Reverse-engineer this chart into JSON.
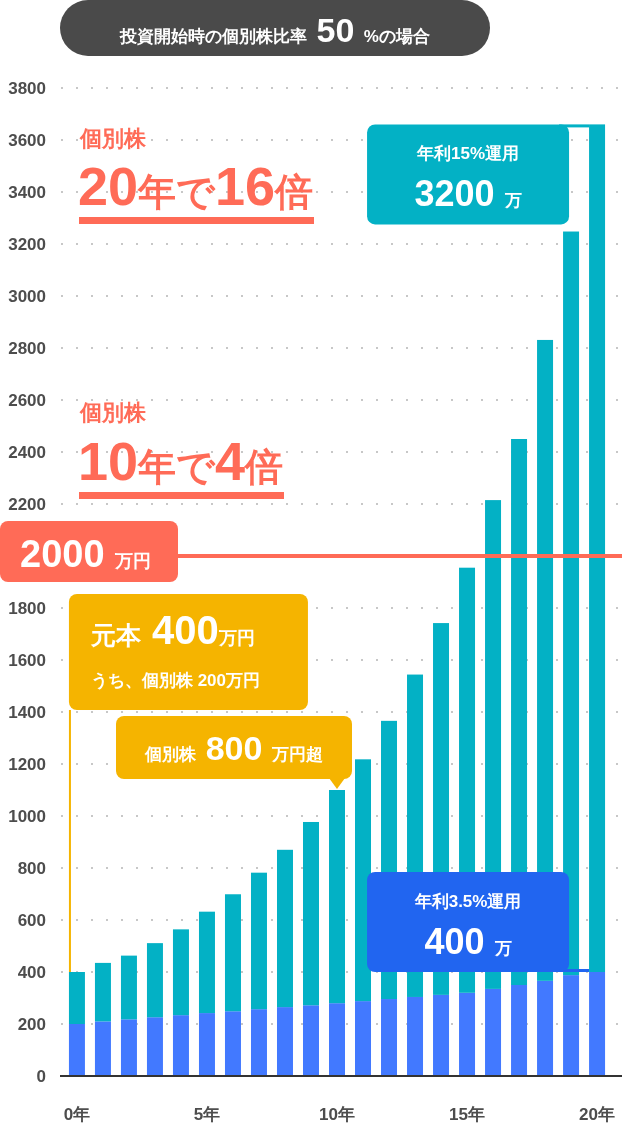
{
  "chart_data": {
    "type": "bar",
    "title": "投資開始時の個別株比率 50 %の場合",
    "categories": [
      "0年",
      null,
      null,
      null,
      null,
      "5年",
      null,
      null,
      null,
      null,
      "10年",
      null,
      null,
      null,
      null,
      "15年",
      null,
      null,
      null,
      null,
      "20年"
    ],
    "series": [
      {
        "color": "#4279ff",
        "values": [
          200,
          210,
          218,
          226,
          234,
          242,
          249,
          257,
          265,
          272,
          280,
          288,
          296,
          304,
          312,
          320,
          335,
          350,
          366,
          388,
          400
        ]
      },
      {
        "color": "#03b1c5",
        "values": [
          200,
          225,
          245,
          285,
          330,
          390,
          450,
          525,
          605,
          705,
          820,
          930,
          1070,
          1240,
          1430,
          1635,
          1880,
          2100,
          2465,
          2860,
          3260
        ]
      }
    ],
    "stacked": true,
    "ylim": [
      0,
      3800
    ],
    "yticks": [
      0,
      200,
      400,
      600,
      800,
      1000,
      1200,
      1400,
      1600,
      1800,
      2200,
      2400,
      2600,
      2800,
      3000,
      3200,
      3400,
      3600,
      3800
    ],
    "grid": "y",
    "ref_lines": [
      {
        "axis": "y",
        "value": 2000,
        "label": "2000 万円",
        "color": "#ff6b57"
      }
    ],
    "annotations": [
      "個別株",
      "20年で16倍",
      "個別株",
      "10年で4倍",
      "年利15%運用",
      {
        "text": "3200 万",
        "x": "20年",
        "y": 3660
      },
      {
        "text": "個別株 800 万円超",
        "x": "10年",
        "y": 1100
      },
      "元本 400万円",
      "うち、個別株 200万円",
      "年利3.5%運用",
      {
        "text": "400 万",
        "x": "20年",
        "y": 400
      }
    ]
  }
}
